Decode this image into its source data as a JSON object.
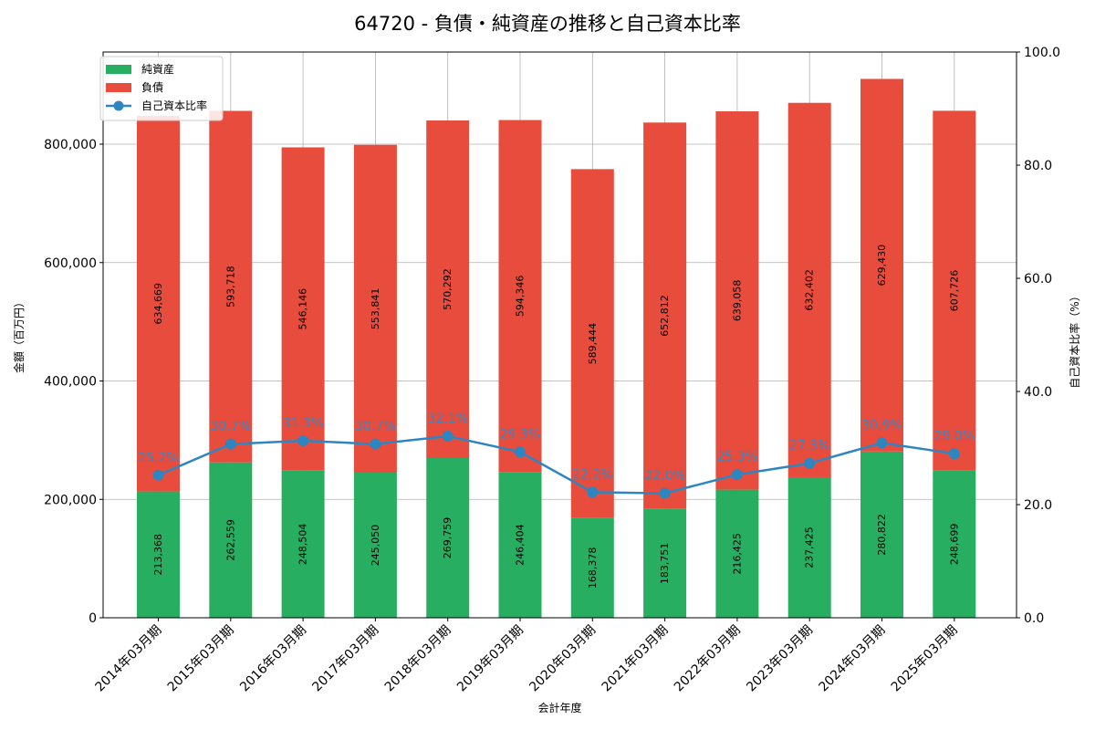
{
  "title": "64720 - 負債・純資産の推移と自己資本比率",
  "colors": {
    "net_assets": "#27ae60",
    "liabilities": "#e74c3c",
    "equity_ratio": "#2e86c1",
    "grid": "#b0b0b0"
  },
  "legend": {
    "items": [
      {
        "label": "純資産",
        "type": "bar",
        "color": "#27ae60"
      },
      {
        "label": "負債",
        "type": "bar",
        "color": "#e74c3c"
      },
      {
        "label": "自己資本比率",
        "type": "line",
        "color": "#2e86c1"
      }
    ]
  },
  "axes": {
    "xlabel": "会計年度",
    "ylabel_left": "金額（百万円）",
    "ylabel_right": "自己資本比率（%）",
    "left_ticks": [
      "0",
      "200,000",
      "400,000",
      "600,000",
      "800,000"
    ],
    "right_ticks": [
      "0.0",
      "20.0",
      "40.0",
      "60.0",
      "80.0",
      "100.0"
    ]
  },
  "chart_data": {
    "type": "bar",
    "stacked": true,
    "title": "64720 - 負債・純資産の推移と自己資本比率",
    "xlabel": "会計年度",
    "ylabel": "金額（百万円）",
    "ylabel_right": "自己資本比率（%）",
    "ylim": [
      0,
      955700
    ],
    "ylim_right": [
      0,
      100
    ],
    "grid": true,
    "legend_position": "upper left",
    "categories": [
      "2014年03月期",
      "2015年03月期",
      "2016年03月期",
      "2017年03月期",
      "2018年03月期",
      "2019年03月期",
      "2020年03月期",
      "2021年03月期",
      "2022年03月期",
      "2023年03月期",
      "2024年03月期",
      "2025年03月期"
    ],
    "series": [
      {
        "name": "純資産",
        "type": "bar",
        "axis": "left",
        "values": [
          213368,
          262559,
          248504,
          245050,
          269759,
          246404,
          168378,
          183751,
          216425,
          237425,
          280822,
          248699
        ],
        "labels": [
          "213,368",
          "262,559",
          "248,504",
          "245,050",
          "269,759",
          "246,404",
          "168,378",
          "183,751",
          "216,425",
          "237,425",
          "280,822",
          "248,699"
        ]
      },
      {
        "name": "負債",
        "type": "bar",
        "axis": "left",
        "values": [
          634669,
          593718,
          546146,
          553841,
          570292,
          594346,
          589444,
          652812,
          639058,
          632402,
          629430,
          607726
        ],
        "labels": [
          "634,669",
          "593,718",
          "546,146",
          "553,841",
          "570,292",
          "594,346",
          "589,444",
          "652,812",
          "639,058",
          "632,402",
          "629,430",
          "607,726"
        ]
      },
      {
        "name": "自己資本比率",
        "type": "line",
        "axis": "right",
        "values": [
          25.2,
          30.7,
          31.3,
          30.7,
          32.1,
          29.3,
          22.2,
          22.0,
          25.3,
          27.3,
          30.9,
          29.0
        ],
        "labels": [
          "25.2%",
          "30.7%",
          "31.3%",
          "30.7%",
          "32.1%",
          "29.3%",
          "22.2%",
          "22.0%",
          "25.3%",
          "27.3%",
          "30.9%",
          "29.0%"
        ]
      }
    ]
  }
}
